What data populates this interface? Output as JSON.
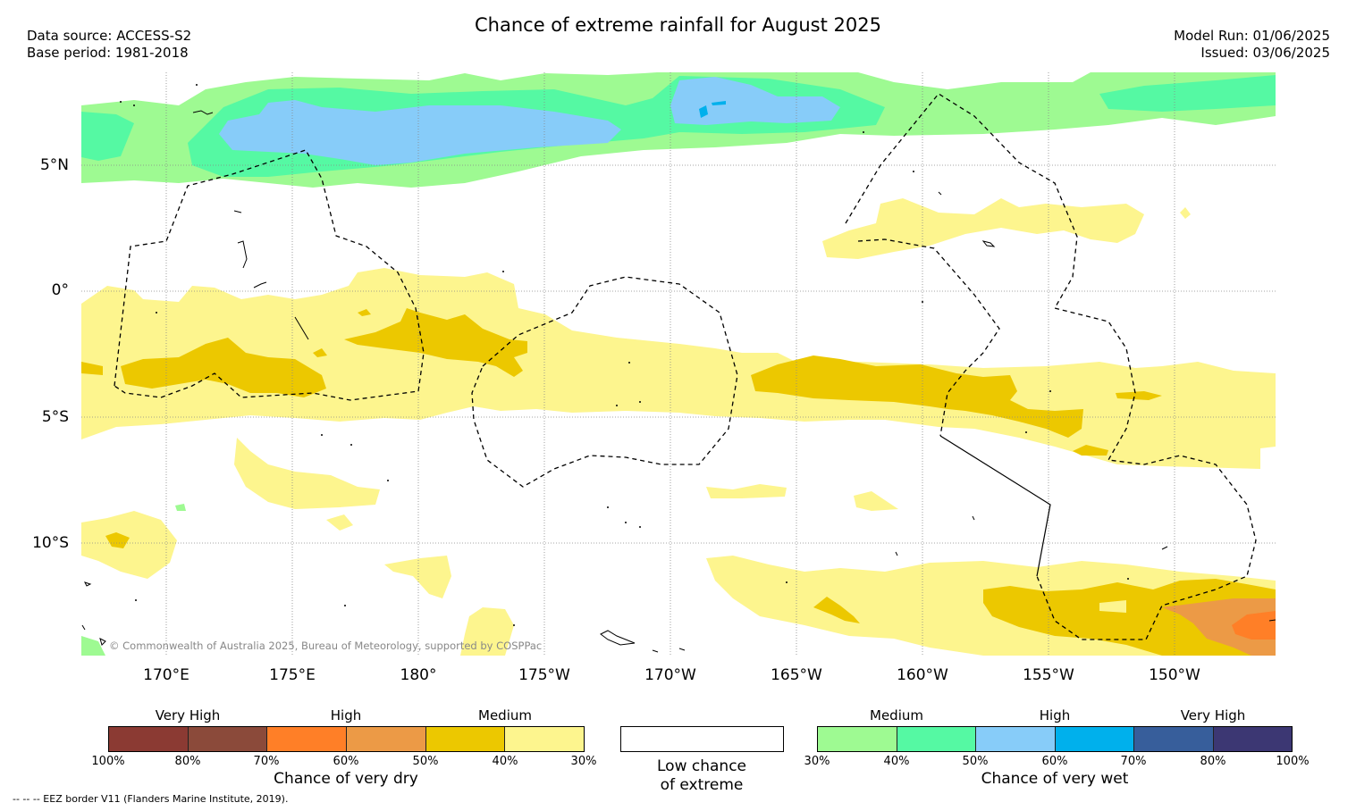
{
  "title": "Chance of extreme rainfall for August 2025",
  "data_source": "Data source: ACCESS-S2",
  "base_period": "Base period: 1981-2018",
  "model_run": "Model Run: 01/06/2025",
  "issued": "Issued: 03/06/2025",
  "lat_labels": [
    "5°N",
    "0°",
    "5°S",
    "10°S"
  ],
  "lon_labels": [
    "170°E",
    "175°E",
    "180°",
    "175°W",
    "170°W",
    "165°W",
    "160°W",
    "155°W",
    "150°W"
  ],
  "copyright": "© Commonwealth of Australia 2025, Bureau of Meteorology, supported by COSPPac",
  "eez_note": "-- -- -- EEZ border V11 (Flanders Marine Institute, 2019).",
  "colors": {
    "dry_very_high_1": "#8b3a33",
    "dry_very_high_2": "#8b4a3a",
    "dry_high_1": "#ff7f27",
    "dry_high_2": "#ec9a46",
    "dry_medium_1": "#ecc800",
    "dry_medium_2": "#fdf58e",
    "wet_medium_1": "#9efa92",
    "wet_medium_2": "#55f9a3",
    "wet_high_1": "#87ccf9",
    "wet_high_2": "#00b0ec",
    "wet_very_high_1": "#375e9b",
    "wet_very_high_2": "#3c3773"
  },
  "legend": {
    "dry": {
      "levels": [
        "Very High",
        "High",
        "Medium"
      ],
      "percents": [
        "100%",
        "80%",
        "70%",
        "60%",
        "50%",
        "40%",
        "30%"
      ],
      "caption": "Chance of very dry"
    },
    "low": {
      "caption_line1": "Low chance",
      "caption_line2": "of extreme"
    },
    "wet": {
      "levels": [
        "Medium",
        "High",
        "Very High"
      ],
      "percents": [
        "30%",
        "40%",
        "50%",
        "60%",
        "70%",
        "80%",
        "100%"
      ],
      "caption": "Chance of very wet"
    }
  }
}
